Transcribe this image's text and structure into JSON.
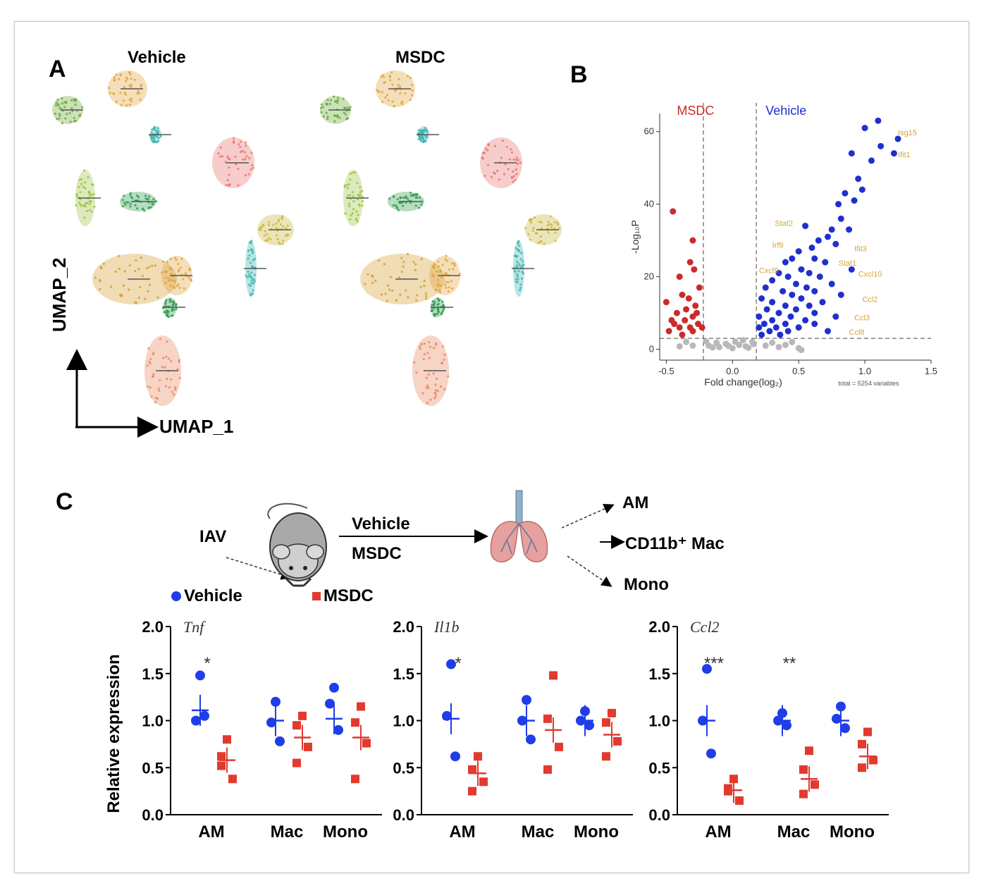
{
  "panel_labels": {
    "a": "A",
    "b": "B",
    "c": "C"
  },
  "panel_a": {
    "left_title": "Vehicle",
    "right_title": "MSDC",
    "x_axis_label": "UMAP_1",
    "y_axis_label": "UMAP_2",
    "cluster_colors": [
      "#e0a33a",
      "#6aa83a",
      "#9ac23e",
      "#2d9c4c",
      "#e8706e",
      "#c9b53a",
      "#d49a2c",
      "#3ab5b0",
      "#e9855a"
    ]
  },
  "panel_b": {
    "left_group": "MSDC",
    "right_group": "Vehicle",
    "xlabel": "Fold change(log₂)",
    "ylabel": "-Log₁₀P",
    "total_note": "total = 5254 variables",
    "colors": {
      "msdc": "#cc2b2b",
      "vehicle": "#1f2fd0",
      "ns": "#b8b8b8",
      "gene_label": "#d6a53a"
    }
  },
  "panel_c": {
    "infection_label": "IAV",
    "treatment_vehicle": "Vehicle",
    "treatment_msdc": "MSDC",
    "outputs": [
      "AM",
      "CD11b⁺ Mac",
      "Mono"
    ],
    "legend_vehicle": "Vehicle",
    "legend_msdc": "MSDC",
    "ylabel": "Relative expression",
    "colors": {
      "vehicle": "#1f3ee8",
      "msdc": "#e23a2e",
      "treatment_vehicle": "#1f2a9a",
      "treatment_msdc": "#b01c1c"
    }
  },
  "chart_data": [
    {
      "type": "scatter",
      "title": "",
      "xlabel": "Fold change(log₂)",
      "ylabel": "-Log₁₀P",
      "xlim": [
        -0.55,
        1.5
      ],
      "ylim": [
        -3,
        65
      ],
      "xticks": [
        "-0.5",
        "0.0",
        "0.5",
        "1.0",
        "1.5"
      ],
      "yticks": [
        "0",
        "20",
        "40",
        "60"
      ],
      "thresholds": {
        "fc": [
          -0.22,
          0.18
        ],
        "p": 3
      },
      "series": [
        {
          "name": "MSDC",
          "points": [
            [
              -0.45,
              38
            ],
            [
              -0.3,
              30
            ],
            [
              -0.32,
              24
            ],
            [
              -0.4,
              20
            ],
            [
              -0.25,
              17
            ],
            [
              -0.38,
              15
            ],
            [
              -0.5,
              13
            ],
            [
              -0.28,
              12
            ],
            [
              -0.35,
              11
            ],
            [
              -0.42,
              10
            ],
            [
              -0.3,
              9
            ],
            [
              -0.46,
              8
            ],
            [
              -0.36,
              8
            ],
            [
              -0.26,
              7
            ],
            [
              -0.4,
              6
            ],
            [
              -0.32,
              6
            ],
            [
              -0.48,
              5
            ],
            [
              -0.3,
              5
            ],
            [
              -0.38,
              4
            ],
            [
              -0.27,
              10
            ],
            [
              -0.23,
              6
            ],
            [
              -0.44,
              7
            ],
            [
              -0.33,
              14
            ],
            [
              -0.29,
              22
            ]
          ]
        },
        {
          "name": "Vehicle",
          "points": [
            [
              1.1,
              63
            ],
            [
              1.0,
              61
            ],
            [
              1.25,
              58
            ],
            [
              1.12,
              56
            ],
            [
              1.22,
              54
            ],
            [
              1.05,
              52
            ],
            [
              0.9,
              54
            ],
            [
              0.95,
              47
            ],
            [
              0.98,
              44
            ],
            [
              0.92,
              41
            ],
            [
              0.85,
              43
            ],
            [
              0.8,
              40
            ],
            [
              0.82,
              36
            ],
            [
              0.75,
              33
            ],
            [
              0.88,
              33
            ],
            [
              0.72,
              31
            ],
            [
              0.78,
              29
            ],
            [
              0.65,
              30
            ],
            [
              0.55,
              34
            ],
            [
              0.6,
              28
            ],
            [
              0.5,
              27
            ],
            [
              0.62,
              25
            ],
            [
              0.45,
              25
            ],
            [
              0.4,
              24
            ],
            [
              0.7,
              24
            ],
            [
              0.52,
              22
            ],
            [
              0.35,
              21
            ],
            [
              0.58,
              21
            ],
            [
              0.42,
              20
            ],
            [
              0.66,
              20
            ],
            [
              0.3,
              19
            ],
            [
              0.48,
              18
            ],
            [
              0.25,
              17
            ],
            [
              0.56,
              17
            ],
            [
              0.38,
              16
            ],
            [
              0.62,
              16
            ],
            [
              0.45,
              15
            ],
            [
              0.22,
              14
            ],
            [
              0.52,
              14
            ],
            [
              0.3,
              13
            ],
            [
              0.68,
              13
            ],
            [
              0.4,
              12
            ],
            [
              0.58,
              12
            ],
            [
              0.26,
              11
            ],
            [
              0.48,
              11
            ],
            [
              0.35,
              10
            ],
            [
              0.62,
              10
            ],
            [
              0.2,
              9
            ],
            [
              0.44,
              9
            ],
            [
              0.3,
              8
            ],
            [
              0.55,
              8
            ],
            [
              0.24,
              7
            ],
            [
              0.4,
              7
            ],
            [
              0.62,
              7
            ],
            [
              0.2,
              6
            ],
            [
              0.33,
              6
            ],
            [
              0.5,
              6
            ],
            [
              0.28,
              5
            ],
            [
              0.42,
              5
            ],
            [
              0.22,
              4
            ],
            [
              0.36,
              4
            ],
            [
              0.82,
              15
            ],
            [
              0.9,
              22
            ],
            [
              0.75,
              18
            ],
            [
              0.78,
              9
            ],
            [
              0.72,
              5
            ]
          ]
        },
        {
          "name": "NS",
          "points": [
            [
              -0.18,
              1
            ],
            [
              -0.1,
              0.6
            ],
            [
              -0.05,
              1.5
            ],
            [
              0.0,
              0.3
            ],
            [
              0.05,
              1.2
            ],
            [
              0.1,
              0.8
            ],
            [
              0.15,
              2
            ],
            [
              -0.2,
              2.2
            ],
            [
              0.08,
              2.5
            ],
            [
              -0.12,
              1.8
            ],
            [
              0.02,
              2.1
            ],
            [
              0.12,
              0.4
            ],
            [
              -0.03,
              0.9
            ],
            [
              0.16,
              1.4
            ],
            [
              -0.15,
              0.5
            ],
            [
              0.25,
              1
            ],
            [
              0.3,
              1.8
            ],
            [
              0.35,
              0.6
            ],
            [
              0.4,
              1.2
            ],
            [
              -0.3,
              1
            ],
            [
              -0.35,
              2
            ],
            [
              -0.4,
              0.8
            ],
            [
              0.5,
              0.3
            ],
            [
              0.45,
              2
            ],
            [
              0.52,
              -0.2
            ]
          ]
        }
      ],
      "gene_labels": [
        "Isg15",
        "Ifit1",
        "Stat2",
        "Irf9",
        "Ifit3",
        "Stat1",
        "Cxcl10",
        "Ccl2",
        "Ccl3",
        "Ccl8",
        "Cxcl9"
      ]
    },
    {
      "type": "scatter",
      "title": "Tnf",
      "xlabel": "",
      "ylabel": "Relative expression",
      "ylim": [
        0,
        2
      ],
      "yticks": [
        "0.0",
        "0.5",
        "1.0",
        "1.5",
        "2.0"
      ],
      "categories": [
        "AM",
        "Mac",
        "Mono"
      ],
      "significance": [
        "*",
        "",
        ""
      ],
      "series": [
        {
          "name": "Vehicle",
          "marker": "circle",
          "values": [
            [
              1.48,
              1.0,
              1.05
            ],
            [
              1.2,
              0.98,
              0.78
            ],
            [
              1.35,
              1.18,
              0.9
            ]
          ],
          "mean": [
            1.11,
            1.0,
            1.02
          ]
        },
        {
          "name": "MSDC",
          "marker": "square",
          "values": [
            [
              0.8,
              0.62,
              0.38,
              0.52
            ],
            [
              1.05,
              0.95,
              0.72,
              0.55
            ],
            [
              1.15,
              0.98,
              0.76,
              0.38
            ]
          ],
          "mean": [
            0.58,
            0.82,
            0.82
          ]
        }
      ]
    },
    {
      "type": "scatter",
      "title": "Il1b",
      "xlabel": "",
      "ylabel": "",
      "ylim": [
        0,
        2
      ],
      "yticks": [
        "0.0",
        "0.5",
        "1.0",
        "1.5",
        "2.0"
      ],
      "categories": [
        "AM",
        "Mac",
        "Mono"
      ],
      "significance": [
        "*",
        "",
        ""
      ],
      "series": [
        {
          "name": "Vehicle",
          "marker": "circle",
          "values": [
            [
              1.6,
              1.05,
              0.62
            ],
            [
              1.22,
              1.0,
              0.8
            ],
            [
              1.1,
              1.0,
              0.95
            ]
          ],
          "mean": [
            1.02,
            1.0,
            1.0
          ]
        },
        {
          "name": "MSDC",
          "marker": "square",
          "values": [
            [
              0.62,
              0.48,
              0.35,
              0.25
            ],
            [
              1.48,
              1.02,
              0.72,
              0.48
            ],
            [
              1.08,
              0.98,
              0.78,
              0.62
            ]
          ],
          "mean": [
            0.44,
            0.9,
            0.85
          ]
        }
      ]
    },
    {
      "type": "scatter",
      "title": "Ccl2",
      "xlabel": "",
      "ylabel": "",
      "ylim": [
        0,
        2
      ],
      "yticks": [
        "0.0",
        "0.5",
        "1.0",
        "1.5",
        "2.0"
      ],
      "categories": [
        "AM",
        "Mac",
        "Mono"
      ],
      "significance": [
        "***",
        "**",
        ""
      ],
      "series": [
        {
          "name": "Vehicle",
          "marker": "circle",
          "values": [
            [
              1.55,
              1.0,
              0.65
            ],
            [
              1.08,
              1.0,
              0.95
            ],
            [
              1.15,
              1.02,
              0.92
            ]
          ],
          "mean": [
            1.0,
            1.0,
            1.0
          ]
        },
        {
          "name": "MSDC",
          "marker": "square",
          "values": [
            [
              0.38,
              0.28,
              0.15,
              0.25
            ],
            [
              0.68,
              0.48,
              0.32,
              0.22
            ],
            [
              0.88,
              0.75,
              0.58,
              0.5
            ]
          ],
          "mean": [
            0.26,
            0.38,
            0.62
          ]
        }
      ]
    }
  ]
}
